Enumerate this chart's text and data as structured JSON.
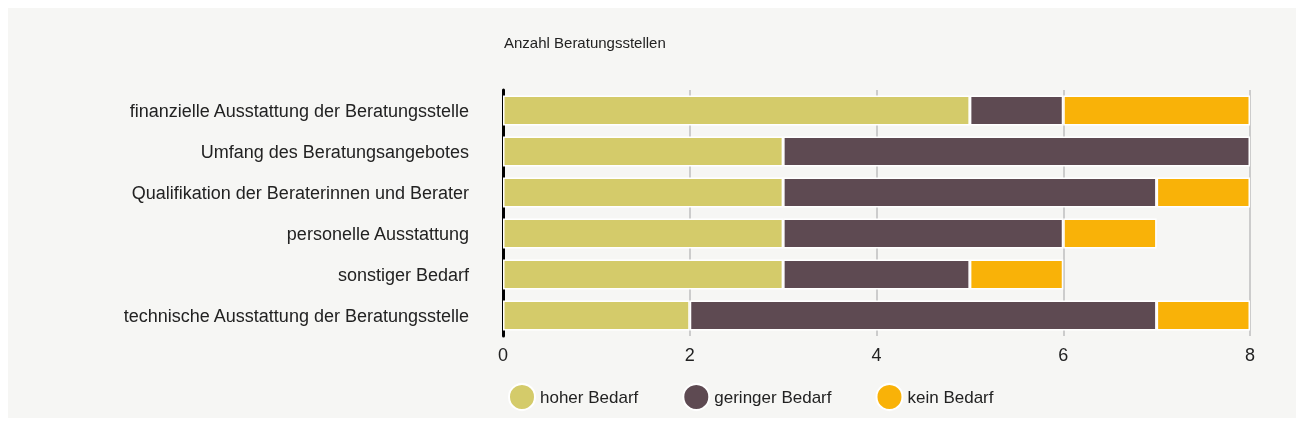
{
  "chart_data": {
    "type": "bar",
    "orientation": "horizontal",
    "stacked": true,
    "xlabel": "Anzahl Beratungsstellen",
    "categories": [
      "finanzielle Ausstattung der Beratungsstelle",
      "Umfang des Beratungsangebotes",
      "Qualifikation der Beraterinnen und Berater",
      "personelle Ausstattung",
      "sonstiger Bedarf",
      "technische Ausstattung der Beratungsstelle"
    ],
    "series": [
      {
        "name": "hoher Bedarf",
        "color": "#d4cb6a",
        "values": [
          5,
          3,
          3,
          3,
          3,
          2
        ]
      },
      {
        "name": "geringer Bedarf",
        "color": "#5e4a52",
        "values": [
          1,
          5,
          4,
          3,
          2,
          5
        ]
      },
      {
        "name": "kein Bedarf",
        "color": "#f9b208",
        "values": [
          2,
          0,
          1,
          1,
          1,
          1
        ]
      }
    ],
    "xlim": [
      0,
      8
    ],
    "xticks": [
      0,
      2,
      4,
      6,
      8
    ],
    "grid": "x",
    "legend": "bottom"
  }
}
